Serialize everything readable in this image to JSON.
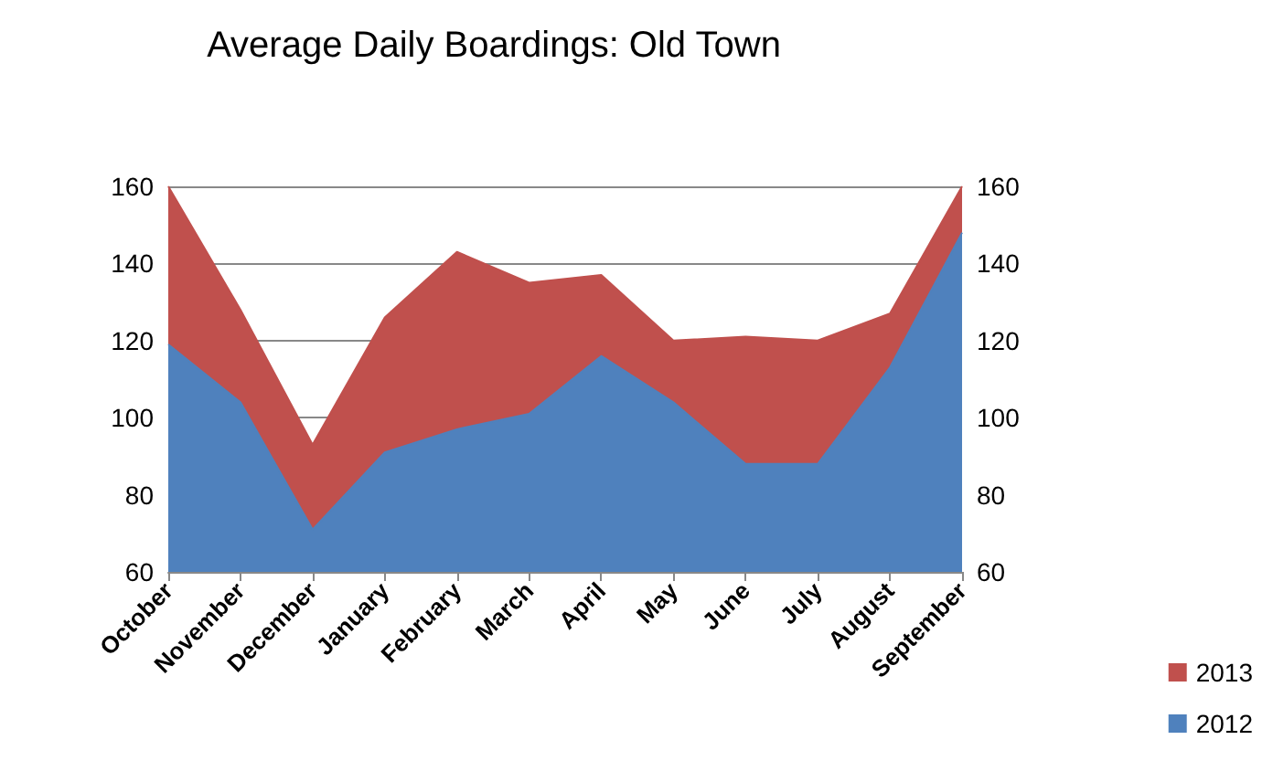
{
  "chart_data": {
    "type": "area",
    "title": "Average Daily Boardings: Old Town",
    "categories": [
      "October",
      "November",
      "December",
      "January",
      "February",
      "March",
      "April",
      "May",
      "June",
      "July",
      "August",
      "September"
    ],
    "series": [
      {
        "name": "2013",
        "color": "#c0504d",
        "values": [
          160,
          128,
          93,
          126,
          143,
          135,
          137,
          120,
          121,
          120,
          127,
          160
        ]
      },
      {
        "name": "2012",
        "color": "#4f81bd",
        "values": [
          119,
          104,
          71,
          91,
          97,
          101,
          116,
          104,
          88,
          88,
          113,
          148
        ]
      }
    ],
    "ylim": [
      60,
      160
    ],
    "yticks": [
      60,
      80,
      100,
      120,
      140,
      160
    ],
    "y2lim": [
      60,
      160
    ],
    "y2ticks": [
      60,
      80,
      100,
      120,
      140,
      160
    ],
    "grid": "y",
    "legend": "bottom right"
  }
}
